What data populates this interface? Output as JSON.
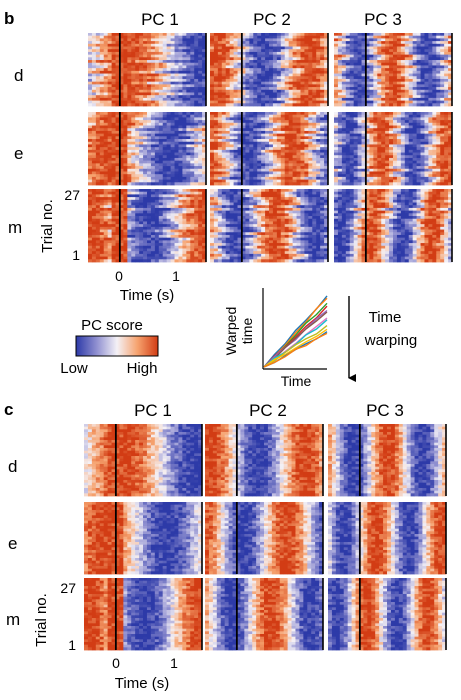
{
  "chart_data": [
    {
      "type": "heatmap",
      "panel": "b",
      "columns": [
        "PC 1",
        "PC 2",
        "PC 3"
      ],
      "rows": [
        "d",
        "e",
        "m"
      ],
      "ylabel": "Trial no.",
      "yticks": [
        "27",
        "1"
      ],
      "xlabel": "Time (s)",
      "xticks": [
        "0",
        "1"
      ]
    },
    {
      "type": "heatmap",
      "panel": "c",
      "columns": [
        "PC 1",
        "PC 2",
        "PC 3"
      ],
      "rows": [
        "d",
        "e",
        "m"
      ],
      "ylabel": "Trial no.",
      "yticks": [
        "27",
        "1"
      ],
      "xlabel": "Time (s)",
      "xticks": [
        "0",
        "1"
      ]
    }
  ],
  "colorbar": {
    "title": "PC score",
    "low_label": "Low",
    "high_label": "High",
    "colors": [
      "#2d3aa8",
      "#8f8fd0",
      "#f4f1f6",
      "#f6a26e",
      "#d23c14"
    ]
  },
  "inset": {
    "ylabel_line1": "Warped",
    "ylabel_line2": "time",
    "xlabel": "Time",
    "arrow_label_line1": "Time",
    "arrow_label_line2": "warping"
  }
}
